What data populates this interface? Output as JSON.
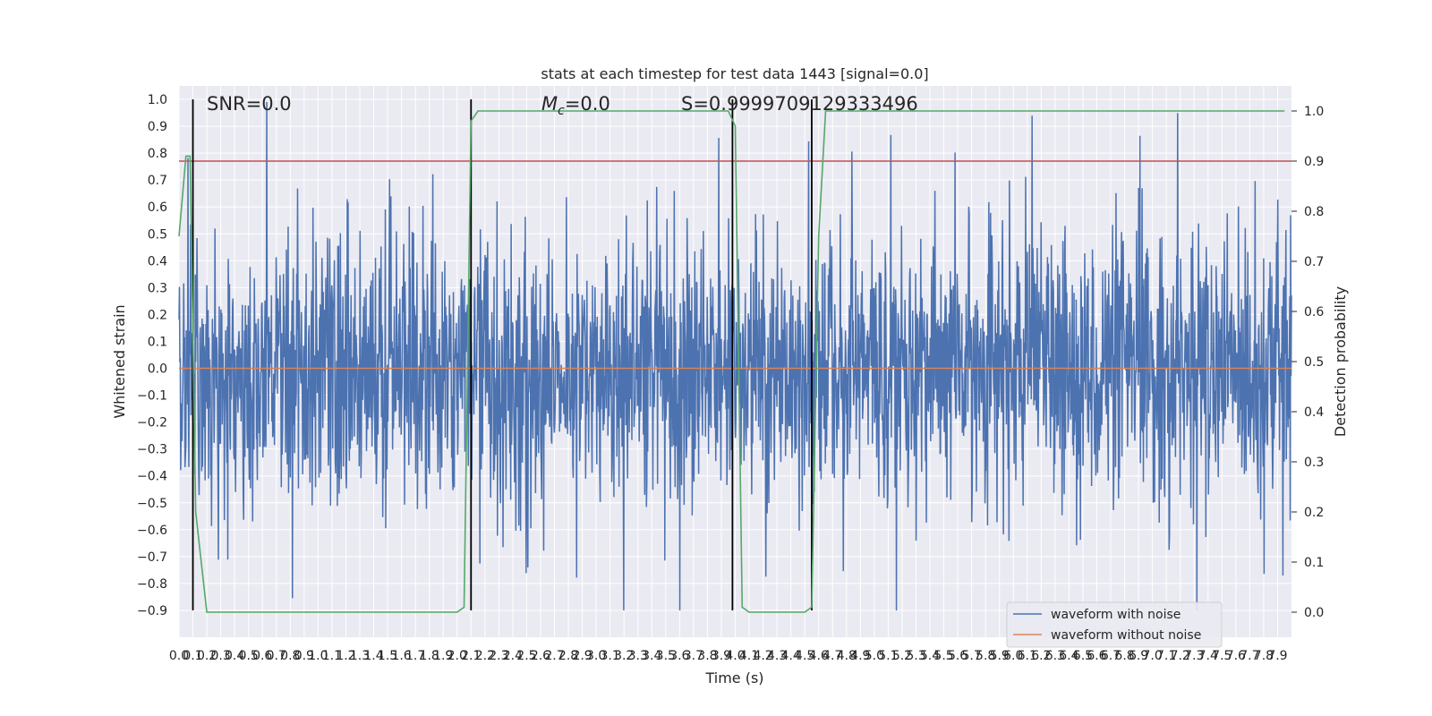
{
  "chart_data": {
    "type": "line",
    "title": "stats at each timestep for test data 1443 [signal=0.0]",
    "xlabel": "Time (s)",
    "ylabel": "Whitened strain",
    "y2label": "Detection probability",
    "xlim": [
      0.0,
      8.0
    ],
    "ylim": [
      -1.0,
      1.05
    ],
    "y2lim": [
      -0.05,
      1.05
    ],
    "x_tick_labels": [
      "0.0",
      "0.1",
      "0.2",
      "0.3",
      "0.4",
      "0.5",
      "0.6",
      "0.7",
      "0.8",
      "0.9",
      "1.0",
      "1.1",
      "1.2",
      "1.3",
      "1.4",
      "1.5",
      "1.6",
      "1.7",
      "1.8",
      "1.9",
      "2.0",
      "2.1",
      "2.2",
      "2.3",
      "2.4",
      "2.5",
      "2.6",
      "2.7",
      "2.8",
      "2.9",
      "3.0",
      "3.1",
      "3.2",
      "3.3",
      "3.4",
      "3.5",
      "3.6",
      "3.7",
      "3.8",
      "3.9",
      "4.0",
      "4.1",
      "4.2",
      "4.3",
      "4.4",
      "4.5",
      "4.6",
      "4.7",
      "4.8",
      "4.9",
      "5.0",
      "5.1",
      "5.2",
      "5.3",
      "5.4",
      "5.5",
      "5.6",
      "5.7",
      "5.8",
      "5.9",
      "6.0",
      "6.1",
      "6.2",
      "6.3",
      "6.4",
      "6.5",
      "6.6",
      "6.7",
      "6.8",
      "6.9",
      "7.0",
      "7.1",
      "7.2",
      "7.3",
      "7.4",
      "7.5",
      "7.6",
      "7.7",
      "7.8",
      "7.9"
    ],
    "y_tick_labels": [
      "1.0",
      "0.9",
      "0.8",
      "0.7",
      "0.6",
      "0.5",
      "0.4",
      "0.3",
      "0.2",
      "0.1",
      "0.0",
      "−0.1",
      "−0.2",
      "−0.3",
      "−0.4",
      "−0.5",
      "−0.6",
      "−0.7",
      "−0.8",
      "−0.9"
    ],
    "y2_tick_labels": [
      "1.0",
      "0.9",
      "0.8",
      "0.7",
      "0.6",
      "0.5",
      "0.4",
      "0.3",
      "0.2",
      "0.1",
      "0.0"
    ],
    "annotations": {
      "snr": "SNR=0.0",
      "mc_symbol": "M",
      "mc_sub": "c",
      "mc_value": "=0.0",
      "s": "S=0.9999709129333496"
    },
    "series": [
      {
        "name": "waveform with noise",
        "color": "#4c72b0",
        "axis": "left",
        "description": "whitened strain noise, roughly within -0.9..1.0"
      },
      {
        "name": "waveform without noise",
        "color": "#dd8452",
        "axis": "left",
        "value": 0.0
      },
      {
        "name": "detection probability",
        "color": "#55a868",
        "axis": "right",
        "x": [
          0.0,
          0.05,
          0.08,
          0.12,
          0.2,
          0.25,
          2.0,
          2.05,
          2.1,
          2.15,
          2.2,
          3.95,
          4.0,
          4.05,
          4.1,
          4.5,
          4.55,
          4.6,
          4.65,
          4.7,
          7.95
        ],
        "y": [
          0.75,
          0.91,
          0.91,
          0.2,
          0.0,
          0.0,
          0.0,
          0.01,
          0.98,
          1.0,
          1.0,
          1.0,
          0.97,
          0.01,
          0.0,
          0.0,
          0.01,
          0.75,
          1.0,
          1.0,
          1.0
        ]
      }
    ],
    "threshold_line": {
      "value": 0.9,
      "axis": "right",
      "color": "#c44e52"
    },
    "vertical_markers": [
      0.1,
      2.1,
      3.98,
      4.55
    ]
  },
  "legend": {
    "items": [
      {
        "label": "waveform with noise",
        "color": "#4c72b0"
      },
      {
        "label": "waveform without noise",
        "color": "#dd8452"
      }
    ]
  }
}
